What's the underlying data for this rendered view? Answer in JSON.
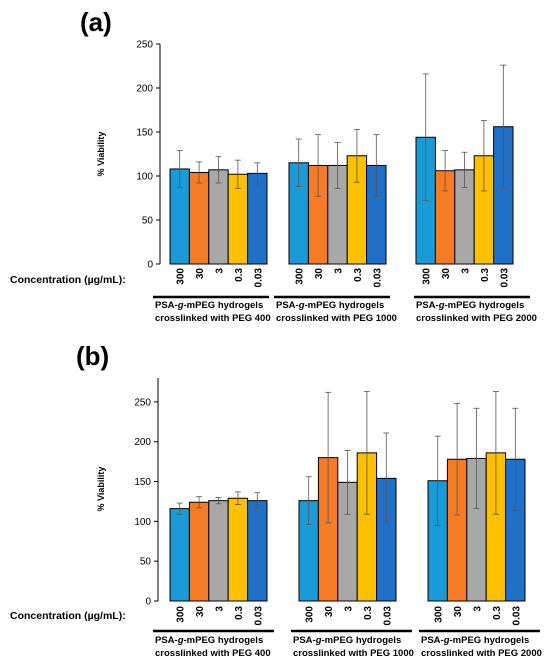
{
  "chart_data": [
    {
      "type": "bar",
      "panel_label": "(a)",
      "ylabel": "% Viability",
      "ylim": [
        0,
        250
      ],
      "yticks": [
        0,
        50,
        100,
        150,
        200,
        250
      ],
      "x_prefix_label": "Concentration (µg/mL):",
      "categories": [
        "300",
        "30",
        "3",
        "0.3",
        "0.03"
      ],
      "colors": [
        "#1a9ad6",
        "#f57c25",
        "#a8a8a8",
        "#ffc000",
        "#2070c8"
      ],
      "groups": [
        {
          "label_line1_pre": "PSA-",
          "label_line1_italic": "g",
          "label_line1_post": "-mPEG hydrogels",
          "label_line2": "crosslinked with PEG 400",
          "values": [
            108,
            104,
            107,
            102,
            103
          ],
          "errors": [
            21,
            12,
            15,
            16,
            12
          ]
        },
        {
          "label_line1_pre": "PSA-",
          "label_line1_italic": "g",
          "label_line1_post": "-mPEG hydrogels",
          "label_line2": "crosslinked with PEG 1000",
          "values": [
            115,
            112,
            112,
            123,
            112
          ],
          "errors": [
            27,
            35,
            26,
            30,
            35
          ]
        },
        {
          "label_line1_pre": "PSA-",
          "label_line1_italic": "g",
          "label_line1_post": "-mPEG hydrogels",
          "label_line2": "crosslinked with PEG 2000",
          "values": [
            144,
            106,
            107,
            123,
            156
          ],
          "errors": [
            72,
            23,
            20,
            40,
            70
          ]
        }
      ]
    },
    {
      "type": "bar",
      "panel_label": "(b)",
      "ylabel": "% Viability",
      "ylim": [
        0,
        280
      ],
      "yticks": [
        0,
        50,
        100,
        150,
        200,
        250
      ],
      "x_prefix_label": "Concentration (µg/mL):",
      "categories": [
        "300",
        "30",
        "3",
        "0.3",
        "0.03"
      ],
      "colors": [
        "#1a9ad6",
        "#f57c25",
        "#a8a8a8",
        "#ffc000",
        "#2070c8"
      ],
      "groups": [
        {
          "label_line1_pre": "PSA-",
          "label_line1_italic": "g",
          "label_line1_post": "-mPEG hydrogels",
          "label_line2": "crosslinked with PEG 400",
          "values": [
            116,
            124,
            126,
            129,
            126
          ],
          "errors": [
            7,
            7,
            4,
            8,
            10
          ]
        },
        {
          "label_line1_pre": "PSA-",
          "label_line1_italic": "g",
          "label_line1_post": "-mPEG hydrogels",
          "label_line2": "crosslinked with PEG 1000",
          "values": [
            126,
            180,
            149,
            186,
            154
          ],
          "errors": [
            30,
            82,
            40,
            77,
            57
          ]
        },
        {
          "label_line1_pre": "PSA-",
          "label_line1_italic": "g",
          "label_line1_post": "-mPEG hydrogels",
          "label_line2": "crosslinked with PEG 2000",
          "values": [
            151,
            178,
            179,
            186,
            178
          ],
          "errors": [
            56,
            70,
            63,
            77,
            64
          ]
        }
      ]
    }
  ]
}
